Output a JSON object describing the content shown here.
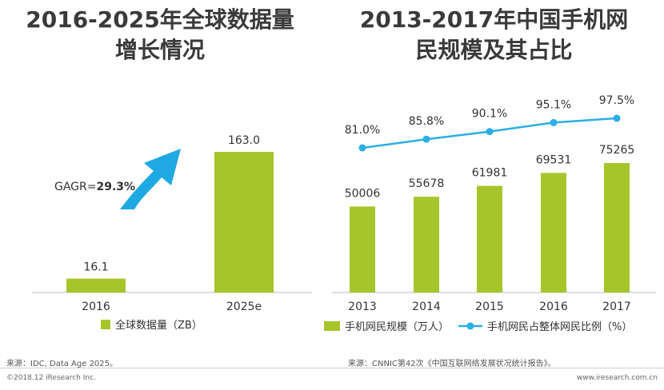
{
  "colors": {
    "bar": "#a6c52b",
    "line": "#29aee6",
    "arrow": "#1fa9e2",
    "axis": "#bdbdbd"
  },
  "chart_data": [
    {
      "type": "bar",
      "title_lines": [
        "2016-2025年全球数据量",
        "增长情况"
      ],
      "categories": [
        "2016",
        "2025e"
      ],
      "values": [
        16.1,
        163.0
      ],
      "value_labels": [
        "16.1",
        "163.0"
      ],
      "series": [
        {
          "name": "全球数据量（ZB）",
          "values": [
            16.1,
            163.0
          ]
        }
      ],
      "legend": "bottom",
      "annotation": {
        "prefix": "GAGR=",
        "value": "29.3%",
        "icon": "up-right-arrow-icon"
      },
      "ylim": [
        0,
        170
      ],
      "source": "来源：IDC, Data Age 2025。"
    },
    {
      "type": "bar+line",
      "title_lines": [
        "2013-2017年中国手机网",
        "民规模及其占比"
      ],
      "categories": [
        "2013",
        "2014",
        "2015",
        "2016",
        "2017"
      ],
      "series": [
        {
          "name": "手机网民规模（万人）",
          "type": "bar",
          "values": [
            50006,
            55678,
            61981,
            69531,
            75265
          ]
        },
        {
          "name": "手机网民占整体网民比例（%）",
          "type": "line",
          "values": [
            81.0,
            85.8,
            90.1,
            95.1,
            97.5
          ],
          "labels": [
            "81.0%",
            "85.8%",
            "90.1%",
            "95.1%",
            "97.5%"
          ]
        }
      ],
      "legend": "bottom",
      "ylim_bar": [
        0,
        90000
      ],
      "ylim_line": [
        0,
        100
      ],
      "source": "来源：CNNIC第42次《中国互联网络发展状况统计报告》。"
    }
  ],
  "footer": {
    "copyright": "©2018.12 iResearch Inc.",
    "website": "www.iresearch.com.cn"
  }
}
